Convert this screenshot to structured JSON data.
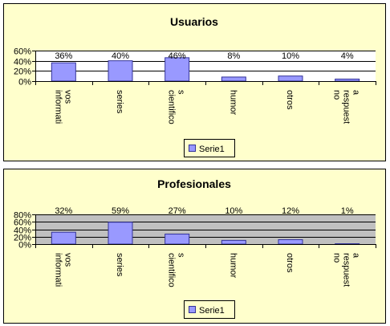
{
  "chart_data": [
    {
      "type": "bar",
      "title": "Usuarios",
      "categories": [
        "informati vos",
        "series",
        "cientifico s",
        "humor",
        "otros",
        "no respuest a"
      ],
      "category_lines": [
        [
          "informati",
          "vos"
        ],
        [
          "series"
        ],
        [
          "cientifico",
          "s"
        ],
        [
          "humor"
        ],
        [
          "otros"
        ],
        [
          "no",
          "respuest",
          "a"
        ]
      ],
      "series": [
        {
          "name": "Serie1",
          "values": [
            36,
            40,
            46,
            8,
            10,
            4
          ]
        }
      ],
      "data_labels": [
        "36%",
        "40%",
        "46%",
        "8%",
        "10%",
        "4%"
      ],
      "yticks": [
        0,
        20,
        40,
        60
      ],
      "ytick_labels": [
        "0%",
        "20%",
        "40%",
        "60%"
      ],
      "ylim": [
        0,
        60
      ],
      "plot_background": "#ffffff",
      "grid": true,
      "legend": "bottom"
    },
    {
      "type": "bar",
      "title": "Profesionales",
      "categories": [
        "informati vos",
        "series",
        "cientifico s",
        "humor",
        "otros",
        "no respuest a"
      ],
      "category_lines": [
        [
          "informati",
          "vos"
        ],
        [
          "series"
        ],
        [
          "cientifico",
          "s"
        ],
        [
          "humor"
        ],
        [
          "otros"
        ],
        [
          "no",
          "respuest",
          "a"
        ]
      ],
      "series": [
        {
          "name": "Serie1",
          "values": [
            32,
            59,
            27,
            10,
            12,
            1
          ]
        }
      ],
      "data_labels": [
        "32%",
        "59%",
        "27%",
        "10%",
        "12%",
        "1%"
      ],
      "yticks": [
        0,
        20,
        40,
        60,
        80
      ],
      "ytick_labels": [
        "0%",
        "20%",
        "40%",
        "60%",
        "80%"
      ],
      "ylim": [
        0,
        80
      ],
      "plot_background": "#c0c0c0",
      "grid": true,
      "legend": "bottom"
    }
  ],
  "colors": {
    "panel_background": "#ffffcc",
    "bar_fill": "#9999ff",
    "bar_stroke": "#333399"
  }
}
